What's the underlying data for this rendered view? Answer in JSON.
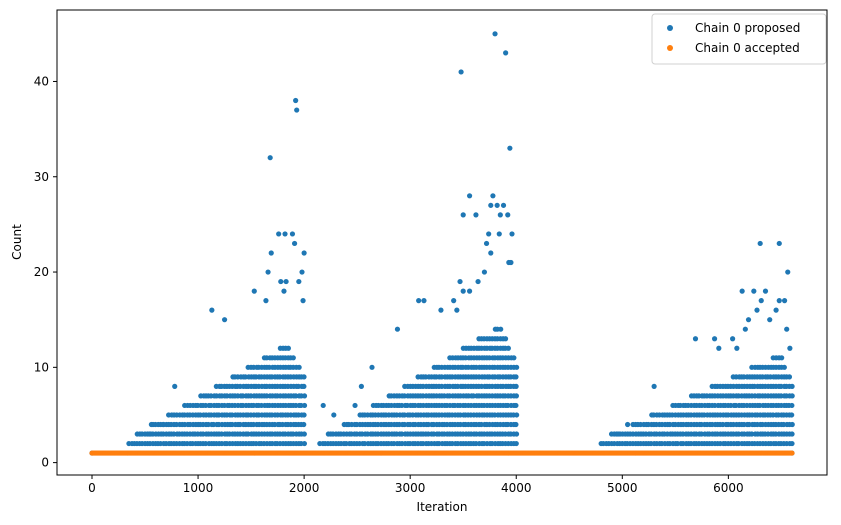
{
  "chart_data": {
    "type": "scatter",
    "xlabel": "Iteration",
    "ylabel": "Count",
    "xlim": [
      -330,
      6930
    ],
    "ylim": [
      -1.3,
      47.5
    ],
    "x_ticks": [
      0,
      1000,
      2000,
      3000,
      4000,
      5000,
      6000
    ],
    "y_ticks": [
      0,
      10,
      20,
      30,
      40
    ],
    "legend_position": "top-right",
    "grid": false,
    "series": [
      {
        "name": "Chain 0 proposed",
        "color": "#1f77b4",
        "points": [
          [
            1680,
            32
          ],
          [
            1920,
            38
          ],
          [
            1930,
            37
          ],
          [
            2000,
            22
          ],
          [
            3480,
            41
          ],
          [
            3800,
            45
          ],
          [
            3900,
            43
          ],
          [
            3940,
            33
          ],
          [
            3500,
            26
          ],
          [
            3560,
            28
          ],
          [
            3620,
            26
          ],
          [
            3760,
            27
          ],
          [
            3780,
            28
          ],
          [
            3820,
            27
          ],
          [
            3850,
            26
          ],
          [
            3880,
            27
          ],
          [
            3920,
            26
          ],
          [
            1660,
            20
          ],
          [
            1690,
            22
          ],
          [
            1760,
            24
          ],
          [
            1820,
            24
          ],
          [
            1890,
            24
          ],
          [
            1910,
            23
          ],
          [
            1950,
            19
          ],
          [
            1980,
            20
          ],
          [
            3720,
            23
          ],
          [
            3740,
            24
          ],
          [
            3760,
            22
          ],
          [
            3840,
            24
          ],
          [
            3960,
            24
          ],
          [
            1530,
            18
          ],
          [
            1640,
            17
          ],
          [
            1780,
            19
          ],
          [
            1810,
            18
          ],
          [
            1830,
            19
          ],
          [
            1990,
            17
          ],
          [
            3470,
            19
          ],
          [
            3500,
            18
          ],
          [
            3560,
            18
          ],
          [
            3640,
            19
          ],
          [
            3700,
            20
          ],
          [
            3930,
            21
          ],
          [
            3950,
            21
          ],
          [
            1130,
            16
          ],
          [
            1250,
            15
          ],
          [
            3080,
            17
          ],
          [
            3130,
            17
          ],
          [
            3290,
            16
          ],
          [
            3410,
            17
          ],
          [
            3440,
            16
          ],
          [
            6300,
            23
          ],
          [
            6480,
            23
          ],
          [
            6560,
            20
          ],
          [
            6130,
            18
          ],
          [
            6240,
            18
          ],
          [
            6310,
            17
          ],
          [
            6350,
            18
          ],
          [
            6480,
            17
          ],
          [
            6530,
            17
          ],
          [
            6040,
            13
          ],
          [
            6080,
            12
          ],
          [
            6160,
            14
          ],
          [
            6190,
            15
          ],
          [
            6270,
            16
          ],
          [
            6390,
            15
          ],
          [
            6450,
            16
          ],
          [
            5690,
            13
          ],
          [
            5870,
            13
          ],
          [
            5910,
            12
          ],
          [
            6550,
            14
          ],
          [
            6580,
            12
          ],
          [
            5300,
            8
          ],
          [
            2880,
            14
          ],
          [
            2640,
            10
          ],
          [
            2540,
            8
          ],
          [
            2480,
            6
          ],
          [
            2180,
            6
          ],
          [
            2280,
            5
          ],
          [
            4960,
            3
          ],
          [
            5050,
            4
          ],
          [
            780,
            8
          ],
          [
            560,
            4
          ],
          [
            670,
            4
          ],
          [
            540,
            3
          ],
          [
            0,
            1
          ],
          [
            6600,
            1
          ]
        ],
        "bands": [
          {
            "x_start": 350,
            "x_end": 2000,
            "y_min": 2,
            "y_peak": 12,
            "peak_x": 1850
          },
          {
            "x_start": 2150,
            "x_end": 4000,
            "y_min": 2,
            "y_peak": 14,
            "peak_x": 3850
          },
          {
            "x_start": 4800,
            "x_end": 6600,
            "y_min": 2,
            "y_peak": 11,
            "peak_x": 6500
          }
        ]
      },
      {
        "name": "Chain 0 accepted",
        "color": "#ff7f0e",
        "constant_value": 1,
        "x_range": [
          0,
          6600
        ]
      }
    ]
  }
}
